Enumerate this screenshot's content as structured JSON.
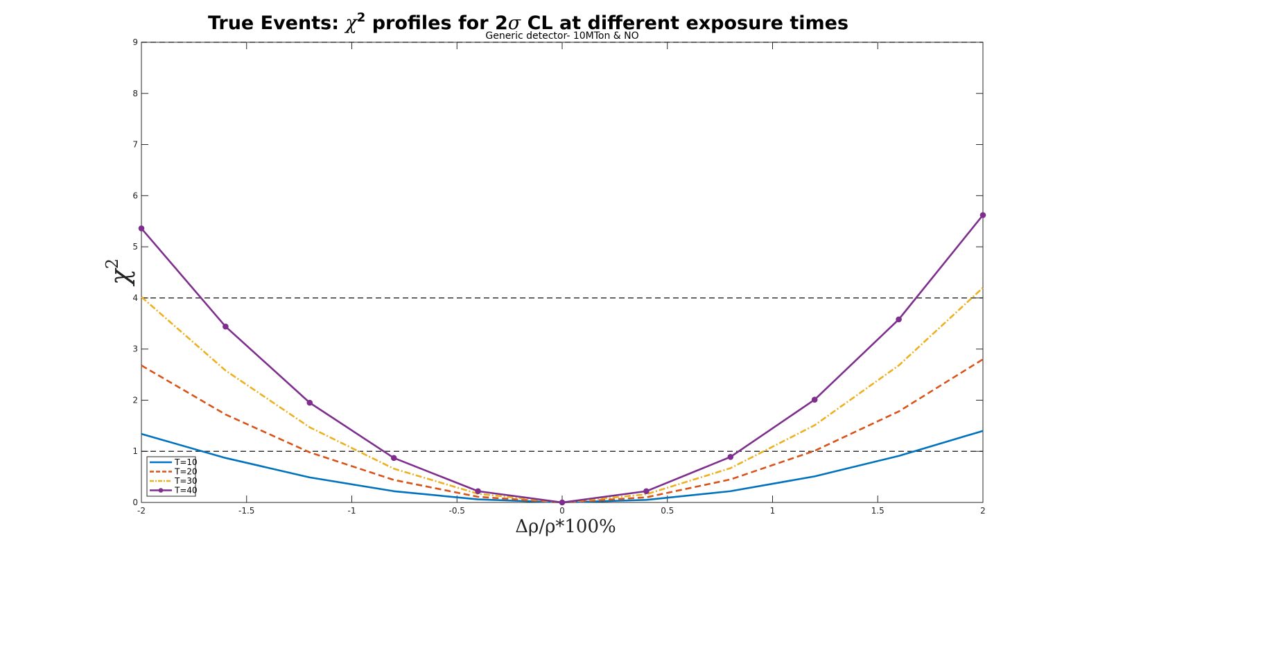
{
  "chart_data": {
    "type": "line",
    "title_prefix": "True Events: ",
    "title_chi": "χ",
    "title_chi_power": "2",
    "title_mid": " profiles for 2",
    "title_sigma": "σ",
    "title_suffix": " CL at different exposure times",
    "subtitle": "Generic detector- 10MTon & NO",
    "xlabel": "Δρ/ρ*100%",
    "ylabel_symbol": "χ",
    "ylabel_power": "2",
    "xlim": [
      -2,
      2
    ],
    "ylim": [
      0,
      9
    ],
    "xticks": [
      -2,
      -1.5,
      -1,
      -0.5,
      0,
      0.5,
      1,
      1.5,
      2
    ],
    "xtick_labels": [
      "-2",
      "-1.5",
      "-1",
      "-0.5",
      "0",
      "0.5",
      "1",
      "1.5",
      "2"
    ],
    "yticks": [
      0,
      1,
      2,
      3,
      4,
      5,
      6,
      7,
      8,
      9
    ],
    "ytick_labels": [
      "0",
      "1",
      "2",
      "3",
      "4",
      "5",
      "6",
      "7",
      "8",
      "9"
    ],
    "reference_lines": [
      1,
      4,
      9
    ],
    "x": [
      -2,
      -1.6,
      -1.2,
      -0.8,
      -0.4,
      0,
      0.4,
      0.8,
      1.2,
      1.6,
      2
    ],
    "legend_position": "bottom-left",
    "series": [
      {
        "name": "T=10",
        "color": "#0072BD",
        "style": "solid",
        "marker": false,
        "values": [
          1.34,
          0.87,
          0.49,
          0.22,
          0.06,
          0.0,
          0.05,
          0.22,
          0.51,
          0.91,
          1.4
        ]
      },
      {
        "name": "T=20",
        "color": "#D95319",
        "style": "dashed",
        "marker": false,
        "values": [
          2.68,
          1.72,
          0.98,
          0.44,
          0.11,
          0.0,
          0.1,
          0.45,
          1.01,
          1.78,
          2.8
        ]
      },
      {
        "name": "T=30",
        "color": "#EDB120",
        "style": "dashdot",
        "marker": false,
        "values": [
          4.02,
          2.58,
          1.47,
          0.66,
          0.17,
          0.0,
          0.16,
          0.67,
          1.51,
          2.68,
          4.2
        ]
      },
      {
        "name": "T=40",
        "color": "#7E2F8E",
        "style": "solid",
        "marker": true,
        "values": [
          5.36,
          3.44,
          1.95,
          0.87,
          0.22,
          0.0,
          0.22,
          0.89,
          2.01,
          3.58,
          5.62
        ]
      }
    ]
  }
}
